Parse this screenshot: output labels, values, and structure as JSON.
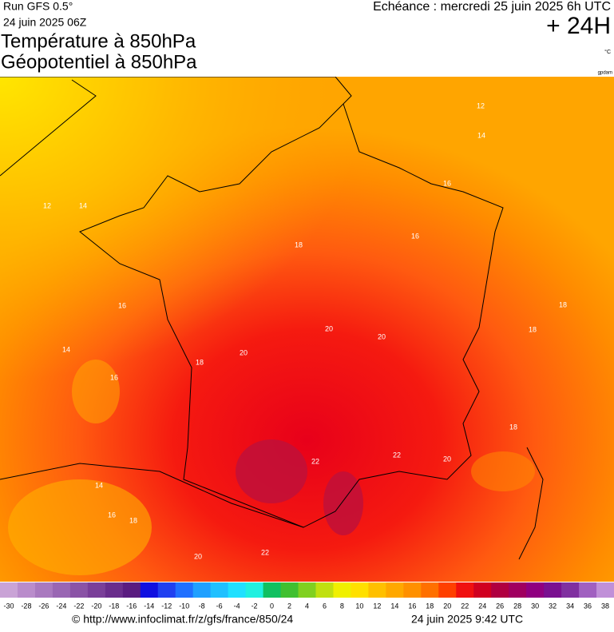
{
  "header": {
    "run": "Run GFS 0.5°",
    "run_date": "24 juin 2025 06Z",
    "title_1": "Température à 850hPa",
    "title_2": "Géopotentiel à 850hPa",
    "forecast": "Echéance : mercredi 25 juin 2025 6h UTC",
    "lead": "+ 24H",
    "unit": "°C",
    "credit": "gpdam"
  },
  "map": {
    "contour_labels": [
      12,
      14,
      12,
      14,
      16,
      16,
      18,
      16,
      14,
      16,
      18,
      18,
      20,
      20,
      20,
      18,
      18,
      20,
      22,
      22,
      14,
      16,
      18,
      20,
      22
    ]
  },
  "scale": {
    "labels": [
      -30,
      -28,
      -26,
      -24,
      -22,
      -20,
      -18,
      -16,
      -14,
      -12,
      -10,
      -8,
      -6,
      -4,
      -2,
      0,
      2,
      4,
      6,
      8,
      10,
      12,
      14,
      16,
      18,
      20,
      22,
      24,
      26,
      28,
      30,
      32,
      34,
      36,
      38
    ],
    "colors": [
      "#c9a3d6",
      "#b98ccb",
      "#a979bf",
      "#9966b3",
      "#8a53a6",
      "#7a3f99",
      "#6a2d8c",
      "#5a1c80",
      "#1010e0",
      "#2040f0",
      "#2070ff",
      "#20a0ff",
      "#20c0ff",
      "#20e0ff",
      "#20f0e0",
      "#10c060",
      "#40c030",
      "#80d020",
      "#c0e010",
      "#f0f000",
      "#ffe000",
      "#ffc000",
      "#ffa800",
      "#ff9000",
      "#ff7000",
      "#ff4000",
      "#f01010",
      "#d00020",
      "#b00040",
      "#a00060",
      "#900080",
      "#7a1090",
      "#8030a0",
      "#a060c0",
      "#c090d8"
    ]
  },
  "footer": {
    "url": "© http://www.infoclimat.fr/z/gfs/france/850/24",
    "stamp": "24 juin 2025  9:42 UTC"
  }
}
